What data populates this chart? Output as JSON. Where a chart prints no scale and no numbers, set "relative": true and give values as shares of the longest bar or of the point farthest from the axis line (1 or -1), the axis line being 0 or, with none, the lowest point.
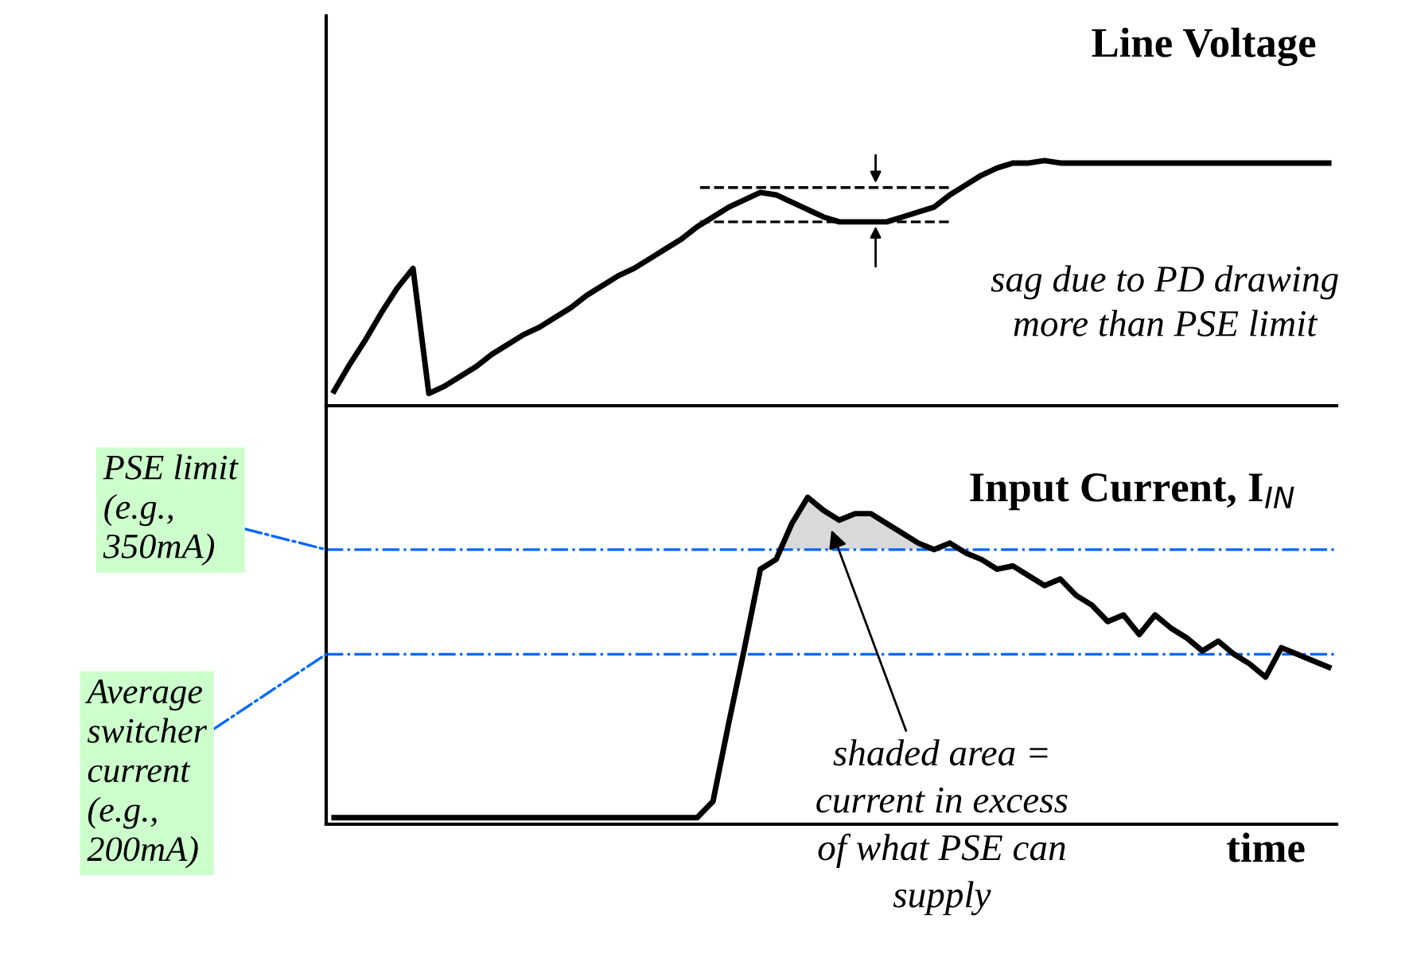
{
  "chart_data": [
    {
      "type": "line",
      "relative": true,
      "title": "Line Voltage",
      "marker": "none",
      "line_style": "solid",
      "categories": [
        null,
        null,
        null,
        null,
        null,
        null,
        null,
        null,
        null,
        null,
        null,
        null,
        null,
        null,
        null,
        null,
        null,
        null,
        null,
        null,
        null,
        null,
        null,
        null,
        null,
        null,
        null,
        null,
        null,
        null,
        null,
        null,
        null,
        null,
        null,
        null,
        null,
        null,
        null,
        null,
        null,
        null,
        null,
        null,
        null,
        null,
        null,
        null,
        null,
        null,
        null,
        null,
        null,
        null,
        null,
        null,
        null,
        null,
        null,
        null,
        null,
        null,
        null,
        null
      ],
      "series": [
        {
          "color": "#000000",
          "values": [
            0.06,
            0.17,
            0.27,
            0.38,
            0.48,
            0.56,
            0.05,
            0.08,
            0.12,
            0.16,
            0.21,
            0.25,
            0.29,
            0.32,
            0.36,
            0.4,
            0.45,
            0.49,
            0.53,
            0.56,
            0.6,
            0.64,
            0.68,
            0.73,
            0.77,
            0.81,
            0.84,
            0.87,
            0.86,
            0.83,
            0.8,
            0.77,
            0.75,
            0.75,
            0.75,
            0.75,
            0.77,
            0.79,
            0.81,
            0.86,
            0.9,
            0.94,
            0.97,
            0.99,
            0.99,
            1.0,
            0.99,
            0.99,
            0.99,
            0.99,
            0.99,
            0.99,
            0.99,
            0.99,
            0.99,
            0.99,
            0.99,
            0.99,
            0.99,
            0.99,
            0.99,
            0.99,
            0.99,
            0.99
          ]
        }
      ],
      "ref_lines": [
        {
          "axis": "y",
          "value": 0.89,
          "color": "#000000",
          "line_style": "dashed"
        },
        {
          "axis": "y",
          "value": 0.75,
          "color": "#000000",
          "line_style": "dashed"
        }
      ],
      "annotations": [
        "sag due to PD drawing more than PSE limit"
      ]
    },
    {
      "type": "line",
      "relative": true,
      "title": "Input Current, I$_{IN}$",
      "xlabel": "time",
      "marker": "none",
      "line_style": "solid",
      "categories": [
        null,
        null,
        null,
        null,
        null,
        null,
        null,
        null,
        null,
        null,
        null,
        null,
        null,
        null,
        null,
        null,
        null,
        null,
        null,
        null,
        null,
        null,
        null,
        null,
        null,
        null,
        null,
        null,
        null,
        null,
        null,
        null,
        null,
        null,
        null,
        null,
        null,
        null,
        null,
        null,
        null,
        null,
        null,
        null,
        null,
        null,
        null,
        null,
        null,
        null,
        null,
        null,
        null,
        null,
        null,
        null,
        null,
        null,
        null,
        null,
        null,
        null,
        null,
        null
      ],
      "series": [
        {
          "color": "#000000",
          "values": [
            0.02,
            0.02,
            0.02,
            0.02,
            0.02,
            0.02,
            0.02,
            0.02,
            0.02,
            0.02,
            0.02,
            0.02,
            0.02,
            0.02,
            0.02,
            0.02,
            0.02,
            0.02,
            0.02,
            0.02,
            0.02,
            0.02,
            0.02,
            0.02,
            0.07,
            0.31,
            0.54,
            0.78,
            0.81,
            0.92,
            1.0,
            0.96,
            0.93,
            0.95,
            0.95,
            0.92,
            0.89,
            0.86,
            0.84,
            0.86,
            0.83,
            0.81,
            0.78,
            0.79,
            0.76,
            0.73,
            0.75,
            0.7,
            0.67,
            0.62,
            0.64,
            0.58,
            0.64,
            0.6,
            0.57,
            0.53,
            0.56,
            0.52,
            0.49,
            0.45,
            0.54,
            0.52,
            0.5,
            0.48
          ]
        }
      ],
      "ref_lines": [
        {
          "axis": "y",
          "value": 0.84,
          "label": "PSE limit (e.g., 350mA)",
          "color": "#0066ff",
          "line_style": "dashdot"
        },
        {
          "axis": "y",
          "value": 0.52,
          "label": "Average switcher current (e.g., 200mA)",
          "color": "#0066ff",
          "line_style": "dashdot"
        }
      ],
      "annotations": [
        "shaded area = current in excess of what PSE can supply"
      ]
    }
  ]
}
